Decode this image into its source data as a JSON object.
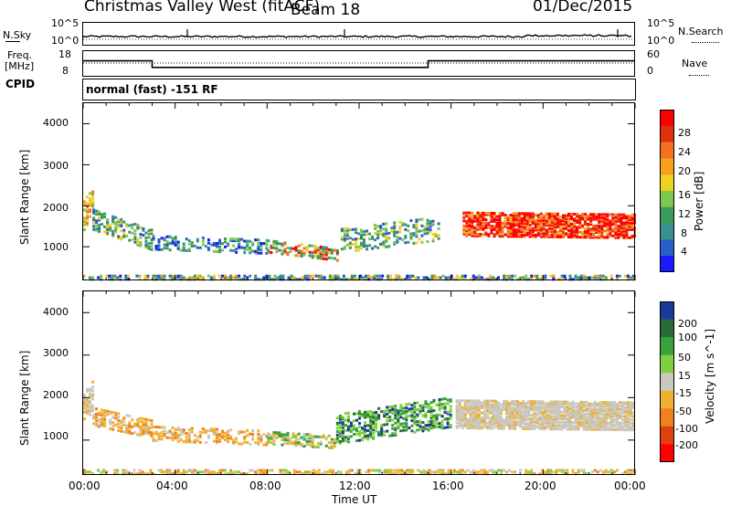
{
  "header": {
    "station": "Christmas Valley West (fitACF)",
    "beam": "Beam 18",
    "date": "01/Dec/2015"
  },
  "noise_panel": {
    "left_label": "N.Sky",
    "right_label": "N.Search",
    "left_ticks": [
      "10^5",
      "10^0"
    ],
    "right_ticks": [
      "10^5",
      "10^0"
    ]
  },
  "freq_panel": {
    "left_label_1": "Freq.",
    "left_label_2": "[MHz]",
    "right_label": "Nave",
    "left_ticks": [
      "18",
      "8"
    ],
    "right_ticks": [
      "60",
      "0"
    ],
    "freq_segments": [
      {
        "start": 0,
        "end": 3,
        "value": 14
      },
      {
        "start": 3,
        "end": 15,
        "value": 11
      },
      {
        "start": 15,
        "end": 24,
        "value": 14
      }
    ],
    "nave_value": 30
  },
  "cpid": {
    "label": "CPID",
    "value": "normal (fast) -151 RF"
  },
  "chart_data": [
    {
      "type": "heatmap",
      "name": "power",
      "ylabel": "Slant Range [km]",
      "xlim": [
        0,
        24
      ],
      "ylim": [
        180,
        4500
      ],
      "yticks": [
        "4000",
        "3000",
        "2000",
        "1000"
      ],
      "colorbar_label": "Power [dB]",
      "colorbar_ticks": [
        "28",
        "24",
        "20",
        "16",
        "12",
        "8",
        "4"
      ],
      "colors": [
        "#1a1aff",
        "#2b5fc7",
        "#3a8f8f",
        "#3c9a5a",
        "#7ec850",
        "#f0d020",
        "#f5a020",
        "#f57020",
        "#e03010",
        "#ff0000"
      ]
    },
    {
      "type": "heatmap",
      "name": "velocity",
      "ylabel": "Slant Range [km]",
      "xlabel": "Time UT",
      "xlim": [
        0,
        24
      ],
      "ylim": [
        180,
        4500
      ],
      "yticks": [
        "4000",
        "3000",
        "2000",
        "1000"
      ],
      "xticks": [
        "00:00",
        "04:00",
        "08:00",
        "12:00",
        "16:00",
        "20:00",
        "00:00"
      ],
      "colorbar_label": "Velocity [m s^-1]",
      "colorbar_ticks": [
        "200",
        "100",
        "50",
        "15",
        "-15",
        "-50",
        "-100",
        "-200"
      ],
      "colors": [
        "#1a3a9a",
        "#2a6a3a",
        "#3aa03a",
        "#7ed040",
        "#c8c8c0",
        "#f0b030",
        "#f08020",
        "#e04010",
        "#ff0000"
      ]
    }
  ]
}
